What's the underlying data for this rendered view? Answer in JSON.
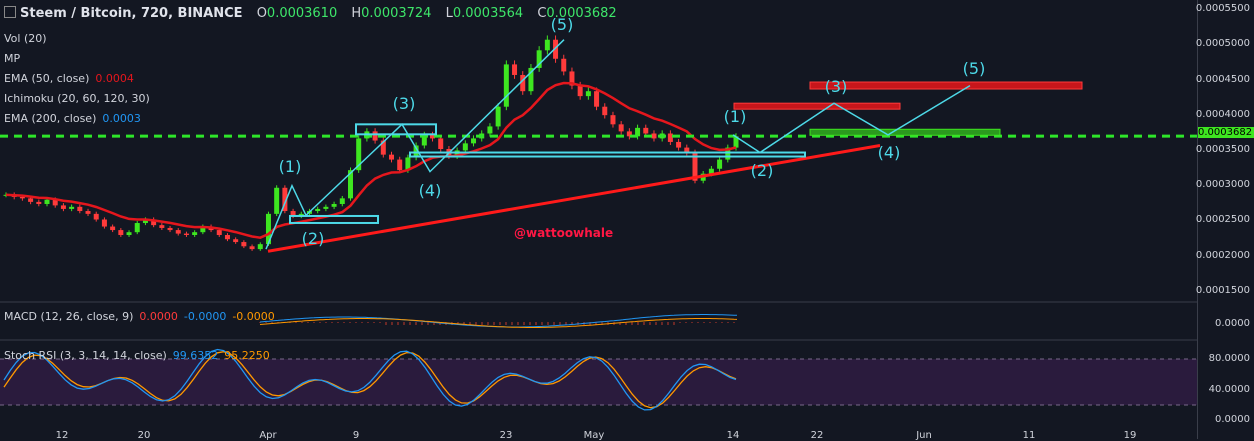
{
  "header": {
    "symbol": "Steem / Bitcoin, 720, BINANCE",
    "open_k": "O",
    "open_v": "0.0003610",
    "high_k": "H",
    "high_v": "0.0003724",
    "low_k": "L",
    "low_v": "0.0003564",
    "close_k": "C",
    "close_v": "0.0003682"
  },
  "indicators": {
    "vol": "Vol (20)",
    "mp": "MP",
    "ema50": "EMA (50, close)",
    "ema50_v": "0.0004",
    "ichimoku": "Ichimoku (20, 60, 120, 30)",
    "ema200": "EMA (200, close)",
    "ema200_v": "0.0003",
    "macd": "MACD (12, 26, close, 9)",
    "macd_v1": "0.0000",
    "macd_v2": "-0.0000",
    "macd_v3": "-0.0000",
    "stoch": "Stoch RSI (3, 3, 14, 14, close)",
    "stoch_v1": "99.6352",
    "stoch_v2": "95.2250"
  },
  "watermark": "@wattoowhale",
  "current_price_label": "0.0003682",
  "colors": {
    "bg": "#131722",
    "up": "#3ee620",
    "down": "#ff3b3b",
    "ema": "#e5171d",
    "trend": "#ff1a1a",
    "cyan": "#4dd9e8",
    "dashed": "#2ee62a",
    "macd": "#2196f3",
    "signal": "#ff9800",
    "stoch_k": "#2196f3",
    "stoch_d": "#ff9800",
    "stoch_bg": "#2a1b3d"
  },
  "chart_data": {
    "type": "candlestick",
    "title": "Steem / Bitcoin, 720, BINANCE",
    "price_axis": [
      "0.0005500",
      "0.0005000",
      "0.0004500",
      "0.0004000",
      "0.0003500",
      "0.0003000",
      "0.0002500",
      "0.0002000",
      "0.0001500"
    ],
    "macd_axis": [
      "0.0000"
    ],
    "stoch_axis": [
      "80.0000",
      "40.0000",
      "0.0000"
    ],
    "x_labels": [
      "12",
      "20",
      "Apr",
      "9",
      "23",
      "May",
      "14",
      "22",
      "Jun",
      "11",
      "19"
    ],
    "wave_labels_past": [
      "(1)",
      "(2)",
      "(3)",
      "(4)",
      "(5)"
    ],
    "wave_labels_future": [
      "(1)",
      "(2)",
      "(3)",
      "(4)",
      "(5)"
    ],
    "close_series": [
      0.000285,
      0.000282,
      0.00028,
      0.000275,
      0.000272,
      0.000278,
      0.00027,
      0.000265,
      0.000268,
      0.000262,
      0.000258,
      0.00025,
      0.00024,
      0.000235,
      0.000228,
      0.000232,
      0.000245,
      0.00025,
      0.000242,
      0.000238,
      0.000235,
      0.00023,
      0.000228,
      0.000232,
      0.00024,
      0.000235,
      0.000228,
      0.000222,
      0.000218,
      0.000212,
      0.000208,
      0.000215,
      0.000258,
      0.000295,
      0.000262,
      0.000255,
      0.000258,
      0.000262,
      0.000265,
      0.000268,
      0.000272,
      0.00028,
      0.00032,
      0.000365,
      0.000375,
      0.000362,
      0.000342,
      0.000335,
      0.00032,
      0.000338,
      0.000355,
      0.00037,
      0.000365,
      0.00035,
      0.00034,
      0.000348,
      0.000358,
      0.000365,
      0.000372,
      0.000382,
      0.00041,
      0.00047,
      0.000455,
      0.000432,
      0.000465,
      0.00049,
      0.000505,
      0.000478,
      0.00046,
      0.00044,
      0.000425,
      0.000432,
      0.00041,
      0.000398,
      0.000385,
      0.000375,
      0.000368,
      0.00038,
      0.000372,
      0.000365,
      0.000372,
      0.00036,
      0.000352,
      0.000345,
      0.000305,
      0.000315,
      0.000322,
      0.000335,
      0.000352,
      0.000368
    ]
  }
}
